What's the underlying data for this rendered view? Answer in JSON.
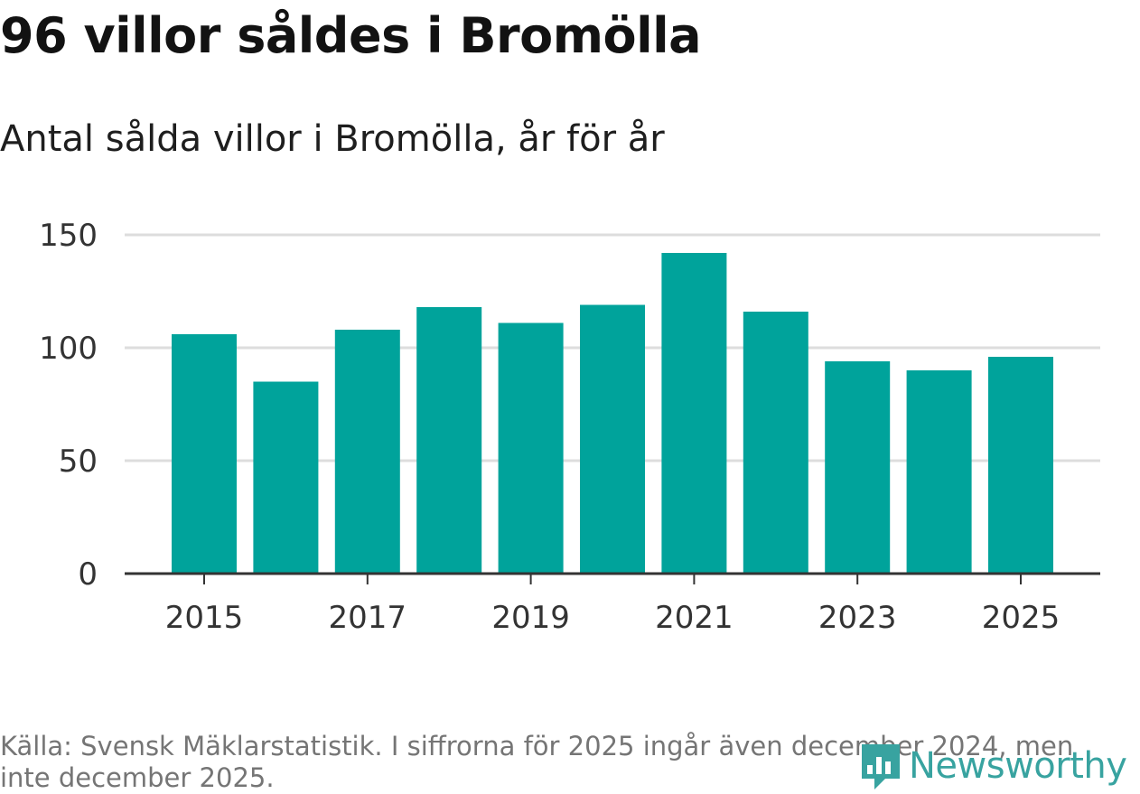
{
  "header": {
    "title": "96 villor såldes i Bromölla",
    "subtitle": "Antal sålda villor i Bromölla, år för år"
  },
  "chart_data": {
    "type": "bar",
    "categories": [
      "2015",
      "2016",
      "2017",
      "2018",
      "2019",
      "2020",
      "2021",
      "2022",
      "2023",
      "2024",
      "2025"
    ],
    "values": [
      106,
      85,
      108,
      118,
      111,
      119,
      142,
      116,
      94,
      90,
      96
    ],
    "x_tick_labels": [
      "2015",
      "2017",
      "2019",
      "2021",
      "2023",
      "2025"
    ],
    "y_ticks": [
      0,
      50,
      100,
      150
    ],
    "ylim": [
      0,
      150
    ],
    "title": "96 villor såldes i Bromölla",
    "subtitle": "Antal sålda villor i Bromölla, år för år",
    "xlabel": "",
    "ylabel": "",
    "grid": true,
    "bar_color": "#00a39b",
    "grid_color": "#dddddd",
    "axis_color": "#333333"
  },
  "footer": {
    "source": "Källa: Svensk Mäklarstatistik. I siffrorna för 2025 ingår även december 2024, men inte december 2025.",
    "brand": "Newsworthy",
    "brand_color": "#38a3a0"
  }
}
